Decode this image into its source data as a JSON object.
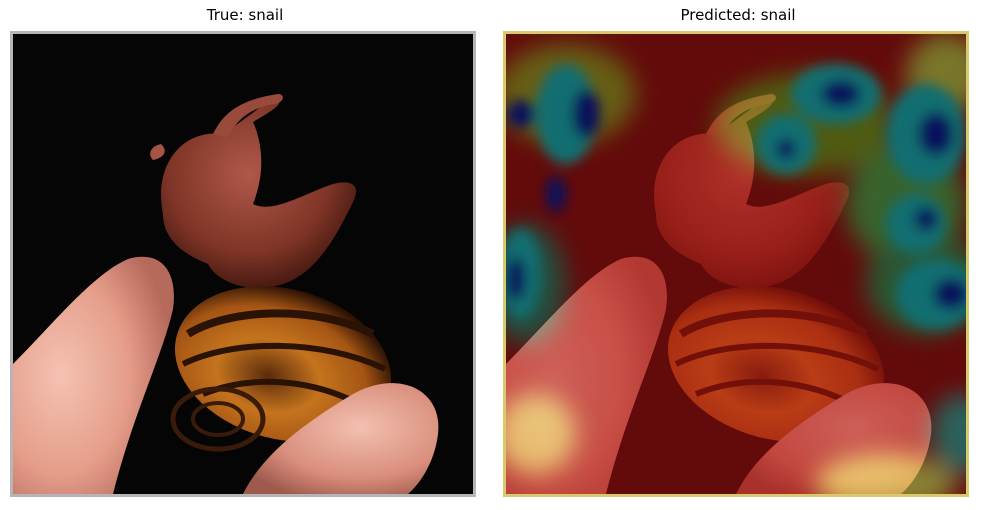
{
  "panels": [
    {
      "title": "True: snail",
      "kind": "original-image",
      "subject": "snail-on-fingers"
    },
    {
      "title": "Predicted: snail",
      "kind": "heatmap-overlay",
      "subject": "snail-on-fingers",
      "colormap": "jet"
    }
  ],
  "colors": {
    "background": "#000000",
    "skin": "#e8a593",
    "shell_dark": "#3a1a08",
    "shell_orange": "#c8781d",
    "snail_body": "#8c3f2f",
    "heat_red": "#b01010",
    "heat_blue": "#0b1ca3",
    "heat_cyan": "#1cc5c9",
    "heat_yellow": "#f6e45a"
  }
}
